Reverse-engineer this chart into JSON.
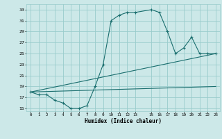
{
  "xlabel": "Humidex (Indice chaleur)",
  "bg_color": "#cce8e8",
  "grid_color": "#99cccc",
  "line_color": "#1a6e6e",
  "line1": {
    "x": [
      0,
      1,
      2,
      3,
      4,
      5,
      6,
      7,
      8,
      9,
      10,
      11,
      12,
      13,
      15,
      16,
      17,
      18,
      19,
      20,
      21,
      22,
      23
    ],
    "y": [
      18,
      17.5,
      17.5,
      16.5,
      16,
      15,
      15,
      15.5,
      19,
      23,
      31,
      32,
      32.5,
      32.5,
      33,
      32.5,
      29,
      25,
      26,
      28,
      25,
      25,
      25
    ]
  },
  "line2": {
    "x": [
      0,
      23
    ],
    "y": [
      18,
      25
    ]
  },
  "line3": {
    "x": [
      0,
      23
    ],
    "y": [
      18,
      19
    ]
  },
  "xlim": [
    -0.5,
    23.5
  ],
  "ylim": [
    14.5,
    34
  ],
  "xticks": [
    0,
    1,
    2,
    3,
    4,
    5,
    6,
    7,
    8,
    9,
    10,
    11,
    12,
    13,
    15,
    16,
    17,
    18,
    19,
    20,
    21,
    22,
    23
  ],
  "yticks": [
    15,
    17,
    19,
    21,
    23,
    25,
    27,
    29,
    31,
    33
  ],
  "ytick_labels": [
    "15",
    "17",
    "19",
    "21",
    "23",
    "25",
    "27",
    "29",
    "31",
    "33"
  ]
}
